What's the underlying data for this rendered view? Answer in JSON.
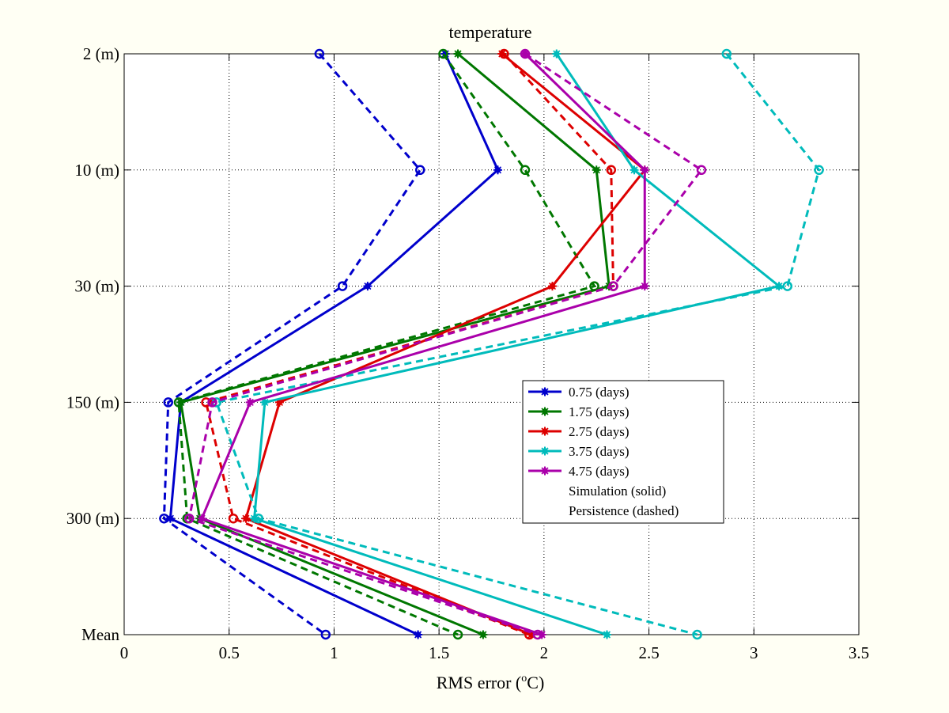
{
  "chart_data": {
    "type": "line",
    "title": "temperature",
    "xlabel_prefix": "RMS error (",
    "xlabel_sup": "o",
    "xlabel_suffix": "C)",
    "xlim": [
      0,
      3.5
    ],
    "x_ticks": [
      0,
      0.5,
      1,
      1.5,
      2,
      2.5,
      3,
      3.5
    ],
    "x_tick_labels": [
      "0",
      "0.5",
      "1",
      "1.5",
      "2",
      "2.5",
      "3",
      "3.5"
    ],
    "categories": [
      "2 (m)",
      "10 (m)",
      "30 (m)",
      "150 (m)",
      "300 (m)",
      "Mean"
    ],
    "grid": true,
    "legend_position": "center-right",
    "series": [
      {
        "name": "0.75 (days)",
        "color": "#0000cc",
        "simulation": [
          1.53,
          1.78,
          1.16,
          0.27,
          0.22,
          1.4
        ],
        "persistence": [
          0.93,
          1.41,
          1.04,
          0.21,
          0.19,
          0.96
        ]
      },
      {
        "name": "1.75 (days)",
        "color": "#007700",
        "simulation": [
          1.59,
          2.25,
          2.31,
          0.27,
          0.36,
          1.71
        ],
        "persistence": [
          1.52,
          1.91,
          2.24,
          0.26,
          0.3,
          1.59
        ]
      },
      {
        "name": "2.75 (days)",
        "color": "#dd0000",
        "simulation": [
          1.8,
          2.48,
          2.04,
          0.74,
          0.58,
          1.94
        ],
        "persistence": [
          1.81,
          2.32,
          2.33,
          0.39,
          0.52,
          1.93
        ]
      },
      {
        "name": "3.75 (days)",
        "color": "#00bbbb",
        "simulation": [
          2.06,
          2.43,
          3.12,
          0.67,
          0.62,
          2.3
        ],
        "persistence": [
          2.87,
          3.31,
          3.16,
          0.44,
          0.64,
          2.73
        ]
      },
      {
        "name": "4.75 (days)",
        "color": "#aa00aa",
        "simulation": [
          1.91,
          2.48,
          2.48,
          0.6,
          0.37,
          1.99
        ],
        "persistence": [
          1.91,
          2.75,
          2.33,
          0.42,
          0.31,
          1.97
        ]
      }
    ],
    "legend_notes": [
      "Simulation (solid)",
      "Persistence (dashed)"
    ]
  }
}
